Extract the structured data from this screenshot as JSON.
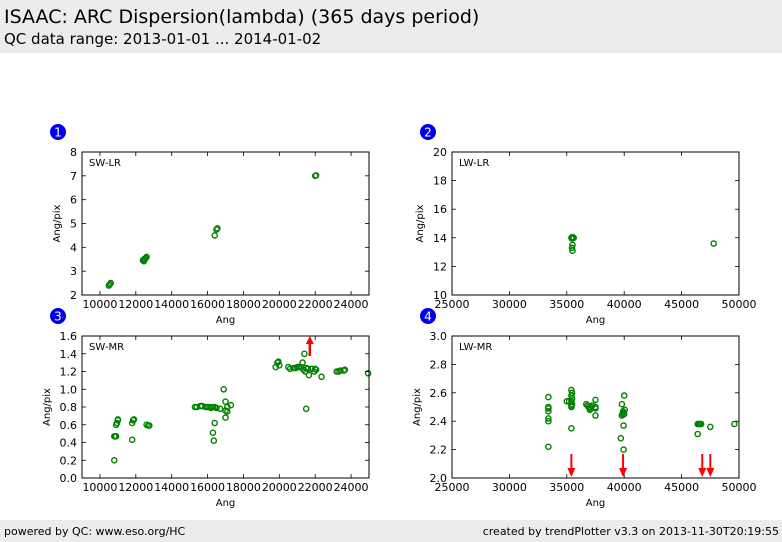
{
  "header": {
    "title": "ISAAC: ARC Dispersion(lambda) (365 days period)",
    "subtitle": "QC data range: 2013-01-01 ... 2014-01-02"
  },
  "footer": {
    "left": "powered by QC: www.eso.org/HC",
    "right": "created by trendPlotter v3.3 on 2013-11-30T20:19:55"
  },
  "colors": {
    "point": "#008000",
    "outlier_arrow": "#ff0000",
    "badge": "#0000ee",
    "badge_text": "#ffffff"
  },
  "chart_data": [
    {
      "type": "scatter",
      "badge": "1",
      "label": "SW-LR",
      "xlabel": "Ang",
      "ylabel": "Ang/pix",
      "xlim": [
        9000,
        25000
      ],
      "ylim": [
        2,
        8
      ],
      "xticks": [
        10000,
        12000,
        14000,
        16000,
        18000,
        20000,
        22000,
        24000
      ],
      "yticks": [
        2,
        3,
        4,
        5,
        6,
        7,
        8
      ],
      "points": [
        [
          10500,
          2.4
        ],
        [
          10550,
          2.45
        ],
        [
          10600,
          2.5
        ],
        [
          12400,
          3.45
        ],
        [
          12450,
          3.5
        ],
        [
          12500,
          3.5
        ],
        [
          12550,
          3.55
        ],
        [
          12600,
          3.6
        ],
        [
          12450,
          3.42
        ],
        [
          16400,
          4.5
        ],
        [
          16500,
          4.75
        ],
        [
          16550,
          4.8
        ],
        [
          22000,
          7.0
        ],
        [
          22050,
          7.02
        ]
      ],
      "arrows_up": [],
      "arrows_down": []
    },
    {
      "type": "scatter",
      "badge": "2",
      "label": "LW-LR",
      "xlabel": "Ang",
      "ylabel": "Ang/pix",
      "xlim": [
        25000,
        50000
      ],
      "ylim": [
        10,
        20
      ],
      "xticks": [
        25000,
        30000,
        35000,
        40000,
        45000,
        50000
      ],
      "yticks": [
        10,
        12,
        14,
        16,
        18,
        20
      ],
      "points": [
        [
          35400,
          14.0
        ],
        [
          35500,
          14.05
        ],
        [
          35600,
          14.0
        ],
        [
          35450,
          13.95
        ],
        [
          35500,
          13.5
        ],
        [
          35450,
          13.3
        ],
        [
          35500,
          13.1
        ],
        [
          47800,
          13.6
        ]
      ],
      "arrows_up": [],
      "arrows_down": []
    },
    {
      "type": "scatter",
      "badge": "3",
      "label": "SW-MR",
      "xlabel": "Ang",
      "ylabel": "Ang/pix",
      "xlim": [
        9000,
        25000
      ],
      "ylim": [
        0.0,
        1.6
      ],
      "xticks": [
        10000,
        12000,
        14000,
        16000,
        18000,
        20000,
        22000,
        24000
      ],
      "yticks": [
        0.0,
        0.2,
        0.4,
        0.6,
        0.8,
        1.0,
        1.2,
        1.4,
        1.6
      ],
      "points": [
        [
          10800,
          0.2
        ],
        [
          10800,
          0.47
        ],
        [
          10850,
          0.47
        ],
        [
          10900,
          0.47
        ],
        [
          10900,
          0.6
        ],
        [
          10950,
          0.62
        ],
        [
          11000,
          0.65
        ],
        [
          11000,
          0.66
        ],
        [
          11800,
          0.43
        ],
        [
          11800,
          0.62
        ],
        [
          11850,
          0.65
        ],
        [
          11900,
          0.66
        ],
        [
          12600,
          0.6
        ],
        [
          12700,
          0.59
        ],
        [
          12750,
          0.59
        ],
        [
          15300,
          0.8
        ],
        [
          15400,
          0.8
        ],
        [
          15600,
          0.81
        ],
        [
          15700,
          0.81
        ],
        [
          15900,
          0.8
        ],
        [
          16000,
          0.8
        ],
        [
          16100,
          0.8
        ],
        [
          16200,
          0.79
        ],
        [
          16300,
          0.8
        ],
        [
          16400,
          0.8
        ],
        [
          16500,
          0.79
        ],
        [
          16700,
          0.78
        ],
        [
          16300,
          0.51
        ],
        [
          16350,
          0.42
        ],
        [
          16400,
          0.62
        ],
        [
          16900,
          1.0
        ],
        [
          17000,
          0.86
        ],
        [
          17000,
          0.68
        ],
        [
          17000,
          0.76
        ],
        [
          17100,
          0.8
        ],
        [
          17100,
          0.75
        ],
        [
          17300,
          0.82
        ],
        [
          19800,
          1.25
        ],
        [
          19900,
          1.3
        ],
        [
          19950,
          1.31
        ],
        [
          20000,
          1.27
        ],
        [
          20500,
          1.25
        ],
        [
          20600,
          1.23
        ],
        [
          20800,
          1.24
        ],
        [
          20900,
          1.24
        ],
        [
          21000,
          1.25
        ],
        [
          21100,
          1.25
        ],
        [
          21200,
          1.25
        ],
        [
          21300,
          1.3
        ],
        [
          21350,
          1.22
        ],
        [
          21400,
          1.4
        ],
        [
          21450,
          1.2
        ],
        [
          21500,
          1.24
        ],
        [
          21600,
          1.23
        ],
        [
          21650,
          1.16
        ],
        [
          21800,
          1.23
        ],
        [
          21950,
          1.2
        ],
        [
          22000,
          1.23
        ],
        [
          22050,
          1.22
        ],
        [
          21500,
          0.78
        ],
        [
          22350,
          1.14
        ],
        [
          23200,
          1.2
        ],
        [
          23300,
          1.2
        ],
        [
          23400,
          1.21
        ],
        [
          23600,
          1.21
        ],
        [
          23650,
          1.22
        ],
        [
          24950,
          1.18
        ]
      ],
      "arrows_up": [
        21700
      ],
      "arrows_down": []
    },
    {
      "type": "scatter",
      "badge": "4",
      "label": "LW-MR",
      "xlabel": "Ang",
      "ylabel": "Ang/pix",
      "xlim": [
        25000,
        50000
      ],
      "ylim": [
        2.0,
        3.0
      ],
      "xticks": [
        25000,
        30000,
        35000,
        40000,
        45000,
        50000
      ],
      "yticks": [
        2.0,
        2.2,
        2.4,
        2.6,
        2.8,
        3.0
      ],
      "points": [
        [
          33400,
          2.22
        ],
        [
          33400,
          2.4
        ],
        [
          33400,
          2.42
        ],
        [
          33400,
          2.47
        ],
        [
          33400,
          2.49
        ],
        [
          33400,
          2.5
        ],
        [
          33400,
          2.57
        ],
        [
          35000,
          2.54
        ],
        [
          35200,
          2.54
        ],
        [
          35400,
          2.35
        ],
        [
          35400,
          2.5
        ],
        [
          35400,
          2.51
        ],
        [
          35450,
          2.52
        ],
        [
          35400,
          2.54
        ],
        [
          35450,
          2.56
        ],
        [
          35400,
          2.58
        ],
        [
          35450,
          2.6
        ],
        [
          35400,
          2.62
        ],
        [
          36700,
          2.52
        ],
        [
          36800,
          2.51
        ],
        [
          36900,
          2.5
        ],
        [
          37000,
          2.48
        ],
        [
          37050,
          2.49
        ],
        [
          37100,
          2.5
        ],
        [
          37200,
          2.51
        ],
        [
          37500,
          2.44
        ],
        [
          37500,
          2.49
        ],
        [
          37500,
          2.5
        ],
        [
          37500,
          2.55
        ],
        [
          39700,
          2.28
        ],
        [
          39800,
          2.52
        ],
        [
          39800,
          2.44
        ],
        [
          39850,
          2.45
        ],
        [
          39900,
          2.46
        ],
        [
          39900,
          2.47
        ],
        [
          39950,
          2.2
        ],
        [
          39950,
          2.37
        ],
        [
          40000,
          2.58
        ],
        [
          40050,
          2.48
        ],
        [
          40000,
          2.45
        ],
        [
          46400,
          2.31
        ],
        [
          46400,
          2.38
        ],
        [
          46500,
          2.38
        ],
        [
          46600,
          2.38
        ],
        [
          46700,
          2.38
        ],
        [
          47500,
          2.36
        ],
        [
          49600,
          2.38
        ]
      ],
      "arrows_up": [],
      "arrows_down": [
        35400,
        39900,
        46800,
        47500
      ]
    }
  ]
}
